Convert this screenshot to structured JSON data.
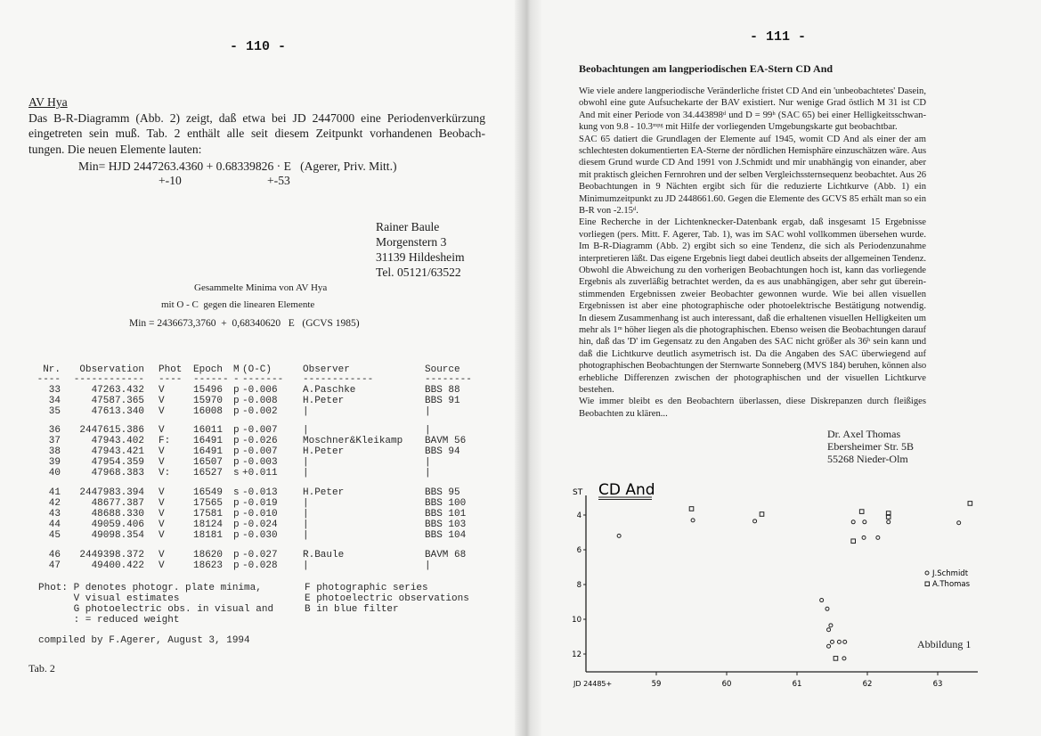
{
  "left_page": {
    "page_number": "- 110 -",
    "heading": "AV Hya",
    "paragraph": [
      "Das B-R-Diagramm (Abb. 2) zeigt, daß etwa bei JD 2447000 eine Periodenverkürzung",
      "eingetreten sein muß. Tab. 2 enthält alle seit diesem Zeitpunkt vorhandenen Beobach-",
      "tungen. Die neuen Elemente lauten:"
    ],
    "formula": "Min= HJD 2447263.4360 + 0.68339826 · E   (Agerer, Priv. Mitt.)",
    "formula_err1": "+-10",
    "formula_err2": "+-53",
    "address": [
      "Rainer Baule",
      "Morgenstern 3",
      "31139 Hildesheim",
      "Tel. 05121/63522"
    ],
    "caption1": "Gesammelte Minima von AV Hya",
    "caption2": "mit O - C  gegen die linearen Elemente",
    "caption3": "Min = 2436673,3760  +  0,68340620   E   (GCVS 1985)",
    "table": {
      "headers": [
        "Nr.",
        "Observation",
        "Phot",
        "Epoch",
        "M",
        "(O-C)",
        "Observer",
        "Source"
      ],
      "dashes": [
        "----",
        "------------",
        "----",
        "------",
        "-",
        "-------",
        "------------",
        "--------"
      ],
      "rows": [
        [
          "33",
          "47263.432",
          "V",
          "15496",
          "p",
          "-0.006",
          "A.Paschke",
          "BBS 88"
        ],
        [
          "34",
          "47587.365",
          "V",
          "15970",
          "p",
          "-0.008",
          "H.Peter",
          "BBS 91"
        ],
        [
          "35",
          "47613.340",
          "V",
          "16008",
          "p",
          "-0.002",
          "|",
          "|"
        ],
        [
          "36",
          "2447615.386",
          "V",
          "16011",
          "p",
          "-0.007",
          "|",
          "|"
        ],
        [
          "37",
          "47943.402",
          "F:",
          "16491",
          "p",
          "-0.026",
          "Moschner&Kleikamp",
          "BAVM 56"
        ],
        [
          "38",
          "47943.421",
          "V",
          "16491",
          "p",
          "-0.007",
          "H.Peter",
          "BBS 94"
        ],
        [
          "39",
          "47954.359",
          "V",
          "16507",
          "p",
          "-0.003",
          "|",
          "|"
        ],
        [
          "40",
          "47968.383",
          "V:",
          "16527",
          "s",
          "+0.011",
          "|",
          "|"
        ],
        [
          "41",
          "2447983.394",
          "V",
          "16549",
          "s",
          "-0.013",
          "H.Peter",
          "BBS 95"
        ],
        [
          "42",
          "48677.387",
          "V",
          "17565",
          "p",
          "-0.019",
          "|",
          "BBS 100"
        ],
        [
          "43",
          "48688.330",
          "V",
          "17581",
          "p",
          "-0.010",
          "|",
          "BBS 101"
        ],
        [
          "44",
          "49059.406",
          "V",
          "18124",
          "p",
          "-0.024",
          "|",
          "BBS 103"
        ],
        [
          "45",
          "49098.354",
          "V",
          "18181",
          "p",
          "-0.030",
          "|",
          "BBS 104"
        ],
        [
          "46",
          "2449398.372",
          "V",
          "18620",
          "p",
          "-0.027",
          "R.Baule",
          "BAVM 68"
        ],
        [
          "47",
          "49400.422",
          "V",
          "18623",
          "p",
          "-0.028",
          "|",
          "|"
        ]
      ]
    },
    "legend": [
      "Phot: P denotes photogr. plate minima,",
      "      V visual estimates",
      "      G photoelectric obs. in visual and",
      "      : = reduced weight"
    ],
    "legend_right": [
      "F photographic series",
      "E photoelectric observations",
      "B in blue filter"
    ],
    "compiled": "compiled by F.Agerer, August 3, 1994",
    "tab_label": "Tab. 2"
  },
  "right_page": {
    "page_number": "- 111 -",
    "title": "Beobachtungen am langperiodischen EA-Stern CD And",
    "lines": [
      "Wie viele andere langperiodische Veränderliche fristet CD And ein 'unbeobachtetes' Dasein,",
      "obwohl eine gute Aufsuchekarte der BAV existiert. Nur wenige Grad östlich M 31 ist CD",
      "And mit einer Periode von 34.443898ᵈ und D = 99ʰ (SAC 65) bei einer Helligkeitsschwan-",
      "kung  von 9.8 - 10.3ᵐᵖᵍ mit Hilfe der vorliegenden Umgebungskarte gut beobachtbar.",
      "SAC 65 datiert die Grundlagen der Elemente auf 1945, womit CD And als einer der am",
      "schlechtesten dokumentierten EA-Sterne der nördlichen Hemisphäre einzuschätzen wäre. Aus",
      "diesem Grund wurde CD And 1991 von J.Schmidt und mir unabhängig von einander, aber",
      "mit praktisch gleichen Fernrohren und der selben Vergleichssternsequenz beobachtet. Aus 26",
      "Beobachtungen in 9 Nächten ergibt sich für die reduzierte Lichtkurve (Abb. 1) ein",
      "Minimumzeitpunkt zu JD 2448661.60. Gegen die Elemente des GCVS 85 erhält man so ein",
      "B-R von -2.15ᵈ.",
      "Eine Recherche in der Lichtenknecker-Datenbank ergab, daß insgesamt 15 Ergebnisse",
      "vorliegen (pers. Mitt. F. Agerer, Tab. 1), was im SAC wohl vollkommen übersehen wurde.",
      "Im B-R-Diagramm (Abb. 2) ergibt sich so eine Tendenz, die sich als Periodenzunahme",
      "interpretieren läßt. Das eigene Ergebnis liegt dabei deutlich abseits der allgemeinen Tendenz.",
      "Obwohl die Abweichung zu den vorherigen Beobachtungen hoch ist, kann das vorliegende",
      "Ergebnis als zuverläßig betrachtet werden, da es aus unabhängigen, aber sehr gut überein-",
      "stimmenden Ergebnissen zweier Beobachter gewonnen wurde. Wie bei allen visuellen",
      "Ergebnissen ist aber eine photographische oder photoelektrische Bestätigung notwendig.",
      "In diesem Zusammenhang ist auch interessant, daß die erhaltenen visuellen Helligkeiten um",
      "mehr als 1ᵐ höher liegen als die photographischen. Ebenso weisen die Beobachtungen darauf",
      "hin, daß das 'D' im Gegensatz zu den Angaben des SAC nicht größer als 36ʰ sein kann und",
      "daß die Lichtkurve deutlich asymetrisch ist. Da die Angaben des SAC überwiegend auf",
      "photographischen Beobachtungen der Sternwarte Sonneberg (MVS 184) beruhen, können also",
      "erhebliche Differenzen zwischen der photographischen und der visuellen Lichtkurve",
      "bestehen.",
      "Wie immer bleibt es den Beobachtern überlassen, diese Diskrepanzen durch fleißiges",
      "Beobachten zu klären..."
    ],
    "address": [
      "Dr. Axel Thomas",
      "Ebersheimer Str. 5B",
      "55268 Nieder-Olm"
    ],
    "figure_caption": "Abbildung 1"
  },
  "chart_data": {
    "type": "scatter",
    "title": "CD And",
    "ylabel": "ST",
    "xlabel": "JD 24485+",
    "x_ticks": [
      "59",
      "60",
      "61",
      "62",
      "63"
    ],
    "y_ticks": [
      "4",
      "6",
      "8",
      "10",
      "12"
    ],
    "xlim": [
      58,
      63.6
    ],
    "ylim": [
      13,
      3
    ],
    "y_inverted": true,
    "grid": false,
    "legend_position": "right",
    "series": [
      {
        "name": "J.Schmidt",
        "marker": "circle",
        "points": [
          [
            58.47,
            5.2
          ],
          [
            59.52,
            4.3
          ],
          [
            60.4,
            4.35
          ],
          [
            61.8,
            4.4
          ],
          [
            61.96,
            4.4
          ],
          [
            62.3,
            4.4
          ],
          [
            63.3,
            4.45
          ],
          [
            61.95,
            5.3
          ],
          [
            62.15,
            5.3
          ],
          [
            61.35,
            8.9
          ],
          [
            61.43,
            9.4
          ],
          [
            61.48,
            10.35
          ],
          [
            61.45,
            10.6
          ],
          [
            61.5,
            11.3
          ],
          [
            61.45,
            11.55
          ],
          [
            61.6,
            11.3
          ],
          [
            61.68,
            11.3
          ],
          [
            61.67,
            12.25
          ]
        ]
      },
      {
        "name": "A.Thomas",
        "marker": "square",
        "points": [
          [
            59.5,
            3.64
          ],
          [
            60.5,
            3.95
          ],
          [
            61.92,
            3.8
          ],
          [
            62.3,
            4.1
          ],
          [
            62.3,
            3.9
          ],
          [
            63.46,
            3.33
          ],
          [
            61.8,
            5.5
          ],
          [
            61.55,
            12.25
          ]
        ]
      }
    ]
  }
}
